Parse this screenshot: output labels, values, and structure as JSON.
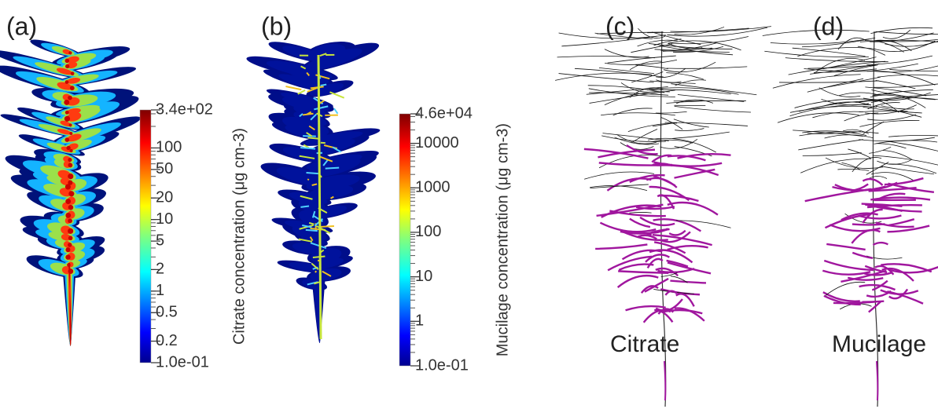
{
  "panels": [
    {
      "label": "(a)",
      "colorbar": {
        "title": "Citrate concentration (μg cm-3)",
        "scale": "log",
        "lim": [
          0.1,
          340
        ],
        "ticks": [
          {
            "value": 340,
            "label": "3.4e+02"
          },
          100,
          50,
          20,
          10,
          5,
          2,
          1,
          0.5,
          0.2,
          {
            "value": 0.1,
            "label": "1.0e-01"
          }
        ]
      }
    },
    {
      "label": "(b)",
      "colorbar": {
        "title": "Mucilage concentration (μg cm-3)",
        "scale": "log",
        "lim": [
          0.1,
          46000
        ],
        "ticks": [
          {
            "value": 46000,
            "label": "4.6e+04"
          },
          10000,
          1000,
          100,
          10,
          1,
          {
            "value": 0.1,
            "label": "1.0e-01"
          }
        ]
      }
    },
    {
      "label": "(c)",
      "caption": "Citrate"
    },
    {
      "label": "(d)",
      "caption": "Mucilage"
    }
  ]
}
